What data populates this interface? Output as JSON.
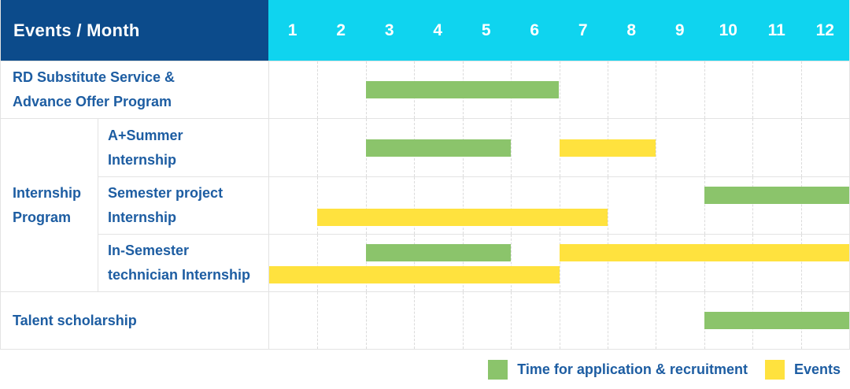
{
  "header": {
    "title": "Events / Month",
    "months": [
      "1",
      "2",
      "3",
      "4",
      "5",
      "6",
      "7",
      "8",
      "9",
      "10",
      "11",
      "12"
    ]
  },
  "legend": [
    {
      "key": "application",
      "label": "Time for application & recruitment",
      "color": "#8BC46B"
    },
    {
      "key": "event",
      "label": "Events",
      "color": "#FFE23E"
    }
  ],
  "colors": {
    "header_bg": "#0C4B8B",
    "months_bg": "#0FD4EF",
    "label_text": "#1D5DA2",
    "grid_line": "#E3E3E3",
    "column_line": "#DBDBDB",
    "application_bar": "#8BC46B",
    "event_bar": "#FFE23E"
  },
  "chart_data": {
    "type": "bar",
    "subtype": "gantt",
    "title": "Events / Month",
    "x_categories": [
      "1",
      "2",
      "3",
      "4",
      "5",
      "6",
      "7",
      "8",
      "9",
      "10",
      "11",
      "12"
    ],
    "x_range": [
      1,
      12
    ],
    "legend_entries": [
      "Time for application & recruitment",
      "Events"
    ],
    "legend_position": "bottom-right",
    "grid": "dashed-vertical-month-lines",
    "sections": [
      {
        "group_label": null,
        "rows": [
          {
            "label": "RD Substitute Service & Advance Offer Program",
            "label_lines": [
              "RD Substitute Service &",
              "Advance Offer Program"
            ],
            "bar_lines": [
              [
                {
                  "series": "application",
                  "start": 3,
                  "end": 6
                }
              ]
            ]
          }
        ]
      },
      {
        "group_label": "Internship Program",
        "group_label_lines": [
          "Internship",
          "Program"
        ],
        "rows": [
          {
            "label": "A+Summer Internship",
            "label_lines": [
              "A+Summer",
              "Internship"
            ],
            "bar_lines": [
              [
                {
                  "series": "application",
                  "start": 3,
                  "end": 5
                },
                {
                  "series": "event",
                  "start": 7,
                  "end": 8
                }
              ]
            ]
          },
          {
            "label": "Semester project Internship",
            "label_lines": [
              "Semester project",
              "Internship"
            ],
            "bar_lines": [
              [
                {
                  "series": "application",
                  "start": 10,
                  "end": 12
                }
              ],
              [
                {
                  "series": "event",
                  "start": 2,
                  "end": 7
                }
              ]
            ]
          },
          {
            "label": "In-Semester technician Internship",
            "label_lines": [
              "In-Semester",
              "technician Internship"
            ],
            "bar_lines": [
              [
                {
                  "series": "application",
                  "start": 3,
                  "end": 5
                },
                {
                  "series": "event",
                  "start": 7,
                  "end": 12
                }
              ],
              [
                {
                  "series": "event",
                  "start": 1,
                  "end": 6
                }
              ]
            ]
          }
        ]
      },
      {
        "group_label": null,
        "rows": [
          {
            "label": "Talent scholarship",
            "label_lines": [
              "Talent scholarship"
            ],
            "bar_lines": [
              [
                {
                  "series": "application",
                  "start": 10,
                  "end": 12
                }
              ]
            ]
          }
        ]
      }
    ]
  }
}
